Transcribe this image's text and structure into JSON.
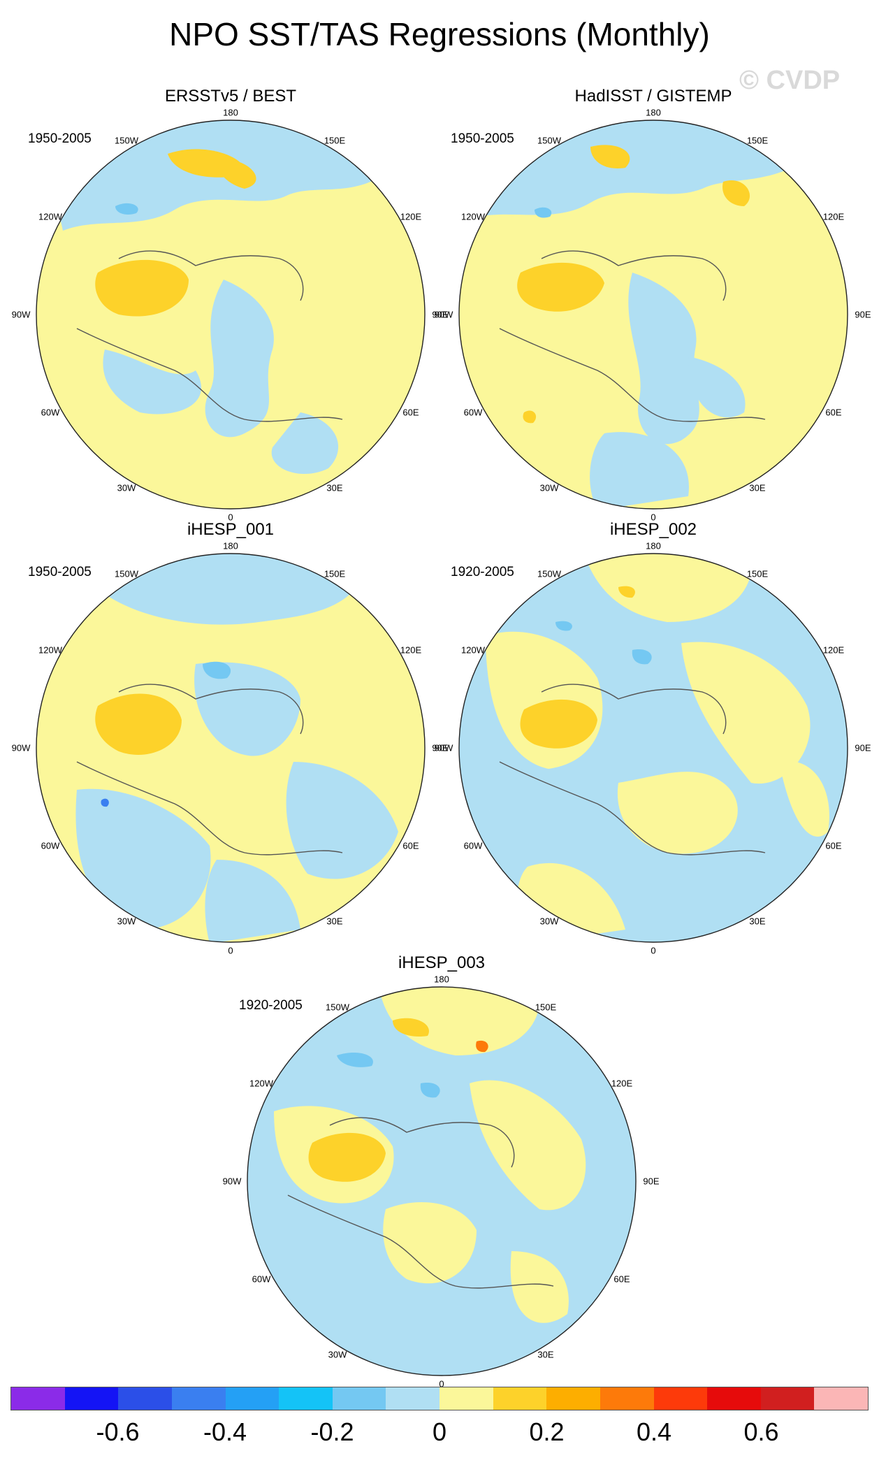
{
  "title": "NPO SST/TAS Regressions (Monthly)",
  "watermark": "© CVDP",
  "lon_labels": [
    "180",
    "150E",
    "120E",
    "90E",
    "60E",
    "30E",
    "0",
    "30W",
    "60W",
    "90W",
    "120W",
    "150W"
  ],
  "panels": [
    {
      "title": "ERSSTv5 / BEST",
      "period": "1950-2005"
    },
    {
      "title": "HadISST / GISTEMP",
      "period": "1950-2005"
    },
    {
      "title": "iHESP_001",
      "period": "1950-2005"
    },
    {
      "title": "iHESP_002",
      "period": "1920-2005"
    },
    {
      "title": "iHESP_003",
      "period": "1920-2005"
    }
  ],
  "colorbar": {
    "colors": [
      "#8b2be8",
      "#1414f5",
      "#2b4fe8",
      "#3a7ff0",
      "#24a0f5",
      "#14c3f7",
      "#74c8f2",
      "#b0dff3",
      "#fbf79a",
      "#fdd22a",
      "#fdae00",
      "#fd7a0a",
      "#fd3a0a",
      "#e60b0b",
      "#d11f1f",
      "#fbb6b6"
    ],
    "labels": [
      "-0.6",
      "-0.4",
      "-0.2",
      "0",
      "0.2",
      "0.4",
      "0.6"
    ],
    "label_values": [
      -0.6,
      -0.4,
      -0.2,
      0,
      0.2,
      0.4,
      0.6
    ],
    "min": -0.8,
    "max": 0.8
  }
}
